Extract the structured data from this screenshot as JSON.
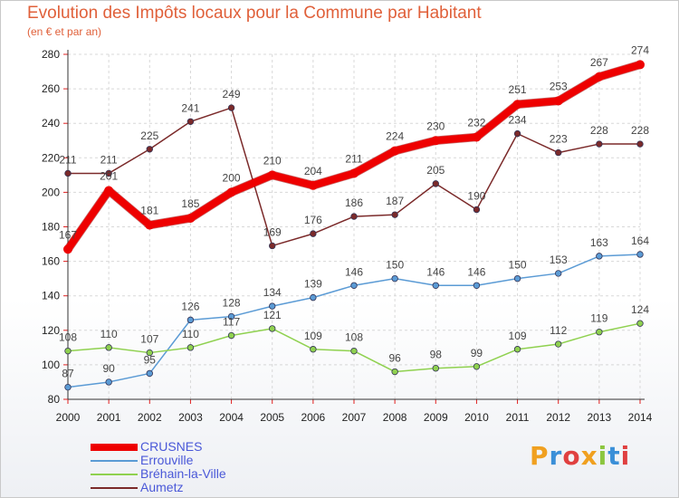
{
  "title": "Evolution des Impôts locaux pour la Commune par Habitant",
  "subtitle": "(en € et par an)",
  "logo": {
    "letters": [
      "P",
      "r",
      "o",
      "x",
      "i",
      "t",
      "i"
    ],
    "colors": [
      "#f0a020",
      "#3a8fd8",
      "#e04040",
      "#f0a020",
      "#8cc63f",
      "#3a8fd8",
      "#e04040"
    ]
  },
  "chart_data": {
    "type": "line",
    "title": "Evolution des Impôts locaux pour la Commune par Habitant",
    "subtitle": "(en € et par an)",
    "x": [
      "2000",
      "2001",
      "2002",
      "2003",
      "2004",
      "2005",
      "2006",
      "2007",
      "2008",
      "2009",
      "2010",
      "2011",
      "2012",
      "2013",
      "2014"
    ],
    "ylim": [
      80,
      280
    ],
    "yticks": [
      "80",
      "100",
      "120",
      "140",
      "160",
      "180",
      "200",
      "220",
      "240",
      "260",
      "280"
    ],
    "grid": true,
    "legend_position": "bottom-left",
    "series": [
      {
        "name": "CRUSNES",
        "color": "#ee0000",
        "width": 8,
        "values": [
          167,
          201,
          181,
          185,
          200,
          210,
          204,
          211,
          224,
          230,
          232,
          251,
          253,
          267,
          274
        ]
      },
      {
        "name": "Errouville",
        "color": "#5b9bd5",
        "width": 1.5,
        "values": [
          87,
          90,
          95,
          126,
          128,
          134,
          139,
          146,
          150,
          146,
          146,
          150,
          153,
          163,
          164
        ]
      },
      {
        "name": "Bréhain-la-Ville",
        "color": "#8fd14f",
        "width": 1.5,
        "values": [
          108,
          110,
          107,
          110,
          117,
          121,
          109,
          108,
          96,
          98,
          99,
          109,
          112,
          119,
          124
        ]
      },
      {
        "name": "Aumetz",
        "color": "#7b2a2a",
        "width": 1.5,
        "values": [
          211,
          211,
          225,
          241,
          249,
          169,
          176,
          186,
          187,
          205,
          190,
          234,
          223,
          228,
          228
        ]
      }
    ]
  }
}
